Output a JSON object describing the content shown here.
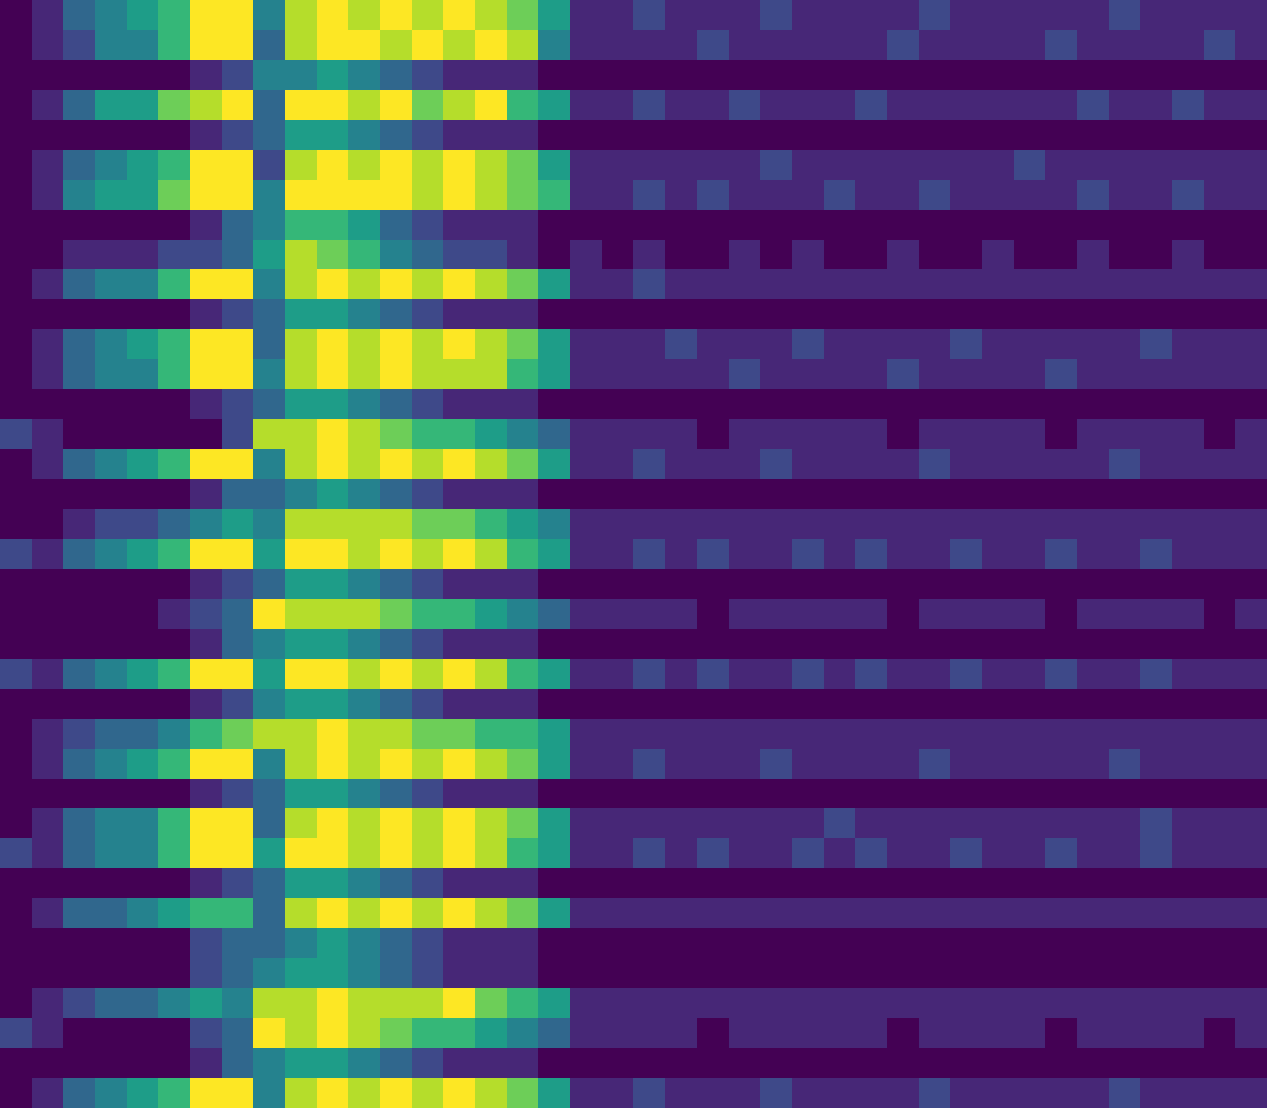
{
  "chart_data": {
    "type": "heatmap",
    "color": "viridis",
    "tick_labels": false,
    "cells": [
      [
        0,
        1,
        3,
        4,
        5,
        6,
        9,
        9,
        4,
        8,
        9,
        8,
        9,
        8,
        9,
        8,
        7,
        5,
        1,
        1,
        2,
        1,
        1,
        1,
        2,
        1,
        1,
        1,
        1,
        2,
        1,
        1,
        1,
        1,
        1,
        2,
        1,
        1,
        1,
        1
      ],
      [
        0,
        1,
        2,
        4,
        4,
        6,
        9,
        9,
        3,
        8,
        9,
        9,
        8,
        9,
        8,
        9,
        8,
        4,
        1,
        1,
        1,
        1,
        2,
        1,
        1,
        1,
        1,
        1,
        2,
        1,
        1,
        1,
        1,
        2,
        1,
        1,
        1,
        1,
        2,
        1
      ],
      [
        0,
        0,
        0,
        0,
        0,
        0,
        1,
        2,
        4,
        4,
        5,
        4,
        3,
        2,
        1,
        1,
        1,
        0,
        0,
        0,
        0,
        0,
        0,
        0,
        0,
        0,
        0,
        0,
        0,
        0,
        0,
        0,
        0,
        0,
        0,
        0,
        0,
        0,
        0,
        0
      ],
      [
        0,
        1,
        3,
        5,
        5,
        7,
        8,
        9,
        3,
        9,
        9,
        8,
        9,
        7,
        8,
        9,
        6,
        5,
        1,
        1,
        2,
        1,
        1,
        2,
        1,
        1,
        1,
        2,
        1,
        1,
        1,
        1,
        1,
        1,
        2,
        1,
        1,
        2,
        1,
        1
      ],
      [
        0,
        0,
        0,
        0,
        0,
        0,
        1,
        2,
        3,
        5,
        5,
        4,
        3,
        2,
        1,
        1,
        1,
        0,
        0,
        0,
        0,
        0,
        0,
        0,
        0,
        0,
        0,
        0,
        0,
        0,
        0,
        0,
        0,
        0,
        0,
        0,
        0,
        0,
        0,
        0
      ],
      [
        0,
        1,
        3,
        4,
        5,
        6,
        9,
        9,
        2,
        8,
        9,
        8,
        9,
        8,
        9,
        8,
        7,
        5,
        1,
        1,
        1,
        1,
        1,
        1,
        2,
        1,
        1,
        1,
        1,
        1,
        1,
        1,
        2,
        1,
        1,
        1,
        1,
        1,
        1,
        1
      ],
      [
        0,
        1,
        4,
        5,
        5,
        7,
        9,
        9,
        4,
        9,
        9,
        9,
        9,
        8,
        9,
        8,
        7,
        6,
        1,
        1,
        2,
        1,
        2,
        1,
        1,
        1,
        2,
        1,
        1,
        2,
        1,
        1,
        1,
        1,
        2,
        1,
        1,
        2,
        1,
        1
      ],
      [
        0,
        0,
        0,
        0,
        0,
        0,
        1,
        3,
        4,
        6,
        6,
        5,
        3,
        2,
        1,
        1,
        1,
        0,
        0,
        0,
        0,
        0,
        0,
        0,
        0,
        0,
        0,
        0,
        0,
        0,
        0,
        0,
        0,
        0,
        0,
        0,
        0,
        0,
        0,
        0
      ],
      [
        0,
        0,
        1,
        1,
        1,
        2,
        2,
        3,
        5,
        8,
        7,
        6,
        4,
        3,
        2,
        2,
        1,
        0,
        1,
        0,
        1,
        0,
        0,
        1,
        0,
        1,
        0,
        0,
        1,
        0,
        0,
        1,
        0,
        0,
        1,
        0,
        0,
        1,
        0,
        0
      ],
      [
        0,
        1,
        3,
        4,
        4,
        6,
        9,
        9,
        4,
        8,
        9,
        8,
        9,
        8,
        9,
        8,
        7,
        5,
        1,
        1,
        2,
        1,
        1,
        1,
        1,
        1,
        1,
        1,
        1,
        1,
        1,
        1,
        1,
        1,
        1,
        1,
        1,
        1,
        1,
        1
      ],
      [
        0,
        0,
        0,
        0,
        0,
        0,
        1,
        2,
        3,
        5,
        5,
        4,
        3,
        2,
        1,
        1,
        1,
        0,
        0,
        0,
        0,
        0,
        0,
        0,
        0,
        0,
        0,
        0,
        0,
        0,
        0,
        0,
        0,
        0,
        0,
        0,
        0,
        0,
        0,
        0
      ],
      [
        0,
        1,
        3,
        4,
        5,
        6,
        9,
        9,
        3,
        8,
        9,
        8,
        9,
        8,
        9,
        8,
        7,
        5,
        1,
        1,
        1,
        2,
        1,
        1,
        1,
        2,
        1,
        1,
        1,
        1,
        2,
        1,
        1,
        1,
        1,
        1,
        2,
        1,
        1,
        1
      ],
      [
        0,
        1,
        3,
        4,
        4,
        6,
        9,
        9,
        4,
        8,
        9,
        8,
        9,
        8,
        8,
        8,
        6,
        5,
        1,
        1,
        1,
        1,
        1,
        2,
        1,
        1,
        1,
        1,
        2,
        1,
        1,
        1,
        1,
        2,
        1,
        1,
        1,
        1,
        1,
        1
      ],
      [
        0,
        0,
        0,
        0,
        0,
        0,
        1,
        2,
        3,
        5,
        5,
        4,
        3,
        2,
        1,
        1,
        1,
        0,
        0,
        0,
        0,
        0,
        0,
        0,
        0,
        0,
        0,
        0,
        0,
        0,
        0,
        0,
        0,
        0,
        0,
        0,
        0,
        0,
        0,
        0
      ],
      [
        2,
        1,
        0,
        0,
        0,
        0,
        0,
        2,
        8,
        8,
        9,
        8,
        7,
        6,
        6,
        5,
        4,
        3,
        1,
        1,
        1,
        1,
        0,
        1,
        1,
        1,
        1,
        1,
        0,
        1,
        1,
        1,
        1,
        0,
        1,
        1,
        1,
        1,
        0,
        1
      ],
      [
        0,
        1,
        3,
        4,
        5,
        6,
        9,
        9,
        4,
        8,
        9,
        8,
        9,
        8,
        9,
        8,
        7,
        5,
        1,
        1,
        2,
        1,
        1,
        1,
        2,
        1,
        1,
        1,
        1,
        2,
        1,
        1,
        1,
        1,
        1,
        2,
        1,
        1,
        1,
        1
      ],
      [
        0,
        0,
        0,
        0,
        0,
        0,
        1,
        3,
        3,
        4,
        5,
        4,
        3,
        2,
        1,
        1,
        1,
        0,
        0,
        0,
        0,
        0,
        0,
        0,
        0,
        0,
        0,
        0,
        0,
        0,
        0,
        0,
        0,
        0,
        0,
        0,
        0,
        0,
        0,
        0
      ],
      [
        0,
        0,
        1,
        2,
        2,
        3,
        4,
        5,
        4,
        8,
        8,
        8,
        8,
        7,
        7,
        6,
        5,
        4,
        1,
        1,
        1,
        1,
        1,
        1,
        1,
        1,
        1,
        1,
        1,
        1,
        1,
        1,
        1,
        1,
        1,
        1,
        1,
        1,
        1,
        1
      ],
      [
        2,
        1,
        3,
        4,
        5,
        6,
        9,
        9,
        5,
        9,
        9,
        8,
        9,
        8,
        9,
        8,
        6,
        5,
        1,
        1,
        2,
        1,
        2,
        1,
        1,
        2,
        1,
        2,
        1,
        1,
        2,
        1,
        1,
        2,
        1,
        1,
        2,
        1,
        1,
        1
      ],
      [
        0,
        0,
        0,
        0,
        0,
        0,
        1,
        2,
        3,
        5,
        5,
        4,
        3,
        2,
        1,
        1,
        1,
        0,
        0,
        0,
        0,
        0,
        0,
        0,
        0,
        0,
        0,
        0,
        0,
        0,
        0,
        0,
        0,
        0,
        0,
        0,
        0,
        0,
        0,
        0
      ],
      [
        0,
        0,
        0,
        0,
        0,
        1,
        2,
        3,
        9,
        8,
        8,
        8,
        7,
        6,
        6,
        5,
        4,
        3,
        1,
        1,
        1,
        1,
        0,
        1,
        1,
        1,
        1,
        1,
        0,
        1,
        1,
        1,
        1,
        0,
        1,
        1,
        1,
        1,
        0,
        1
      ],
      [
        0,
        0,
        0,
        0,
        0,
        0,
        1,
        3,
        4,
        5,
        5,
        4,
        3,
        2,
        1,
        1,
        1,
        0,
        0,
        0,
        0,
        0,
        0,
        0,
        0,
        0,
        0,
        0,
        0,
        0,
        0,
        0,
        0,
        0,
        0,
        0,
        0,
        0,
        0,
        0
      ],
      [
        2,
        1,
        3,
        4,
        5,
        6,
        9,
        9,
        5,
        9,
        9,
        8,
        9,
        8,
        9,
        8,
        6,
        5,
        1,
        1,
        2,
        1,
        2,
        1,
        1,
        2,
        1,
        2,
        1,
        1,
        2,
        1,
        1,
        2,
        1,
        1,
        2,
        1,
        1,
        1
      ],
      [
        0,
        0,
        0,
        0,
        0,
        0,
        1,
        2,
        4,
        5,
        5,
        4,
        3,
        2,
        1,
        1,
        1,
        0,
        0,
        0,
        0,
        0,
        0,
        0,
        0,
        0,
        0,
        0,
        0,
        0,
        0,
        0,
        0,
        0,
        0,
        0,
        0,
        0,
        0,
        0
      ],
      [
        0,
        1,
        2,
        3,
        3,
        4,
        6,
        7,
        8,
        8,
        9,
        8,
        8,
        7,
        7,
        6,
        6,
        5,
        1,
        1,
        1,
        1,
        1,
        1,
        1,
        1,
        1,
        1,
        1,
        1,
        1,
        1,
        1,
        1,
        1,
        1,
        1,
        1,
        1,
        1
      ],
      [
        0,
        1,
        3,
        4,
        5,
        6,
        9,
        9,
        4,
        8,
        9,
        8,
        9,
        8,
        9,
        8,
        7,
        5,
        1,
        1,
        2,
        1,
        1,
        1,
        2,
        1,
        1,
        1,
        1,
        2,
        1,
        1,
        1,
        1,
        1,
        2,
        1,
        1,
        1,
        1
      ],
      [
        0,
        0,
        0,
        0,
        0,
        0,
        1,
        2,
        3,
        5,
        5,
        4,
        3,
        2,
        1,
        1,
        1,
        0,
        0,
        0,
        0,
        0,
        0,
        0,
        0,
        0,
        0,
        0,
        0,
        0,
        0,
        0,
        0,
        0,
        0,
        0,
        0,
        0,
        0,
        0
      ],
      [
        0,
        1,
        3,
        4,
        4,
        6,
        9,
        9,
        3,
        8,
        9,
        8,
        9,
        8,
        9,
        8,
        7,
        5,
        1,
        1,
        1,
        1,
        1,
        1,
        1,
        1,
        2,
        1,
        1,
        1,
        1,
        1,
        1,
        1,
        1,
        1,
        2,
        1,
        1,
        1
      ],
      [
        2,
        1,
        3,
        4,
        4,
        6,
        9,
        9,
        5,
        9,
        9,
        8,
        9,
        8,
        9,
        8,
        6,
        5,
        1,
        1,
        2,
        1,
        2,
        1,
        1,
        2,
        1,
        2,
        1,
        1,
        2,
        1,
        1,
        2,
        1,
        1,
        2,
        1,
        1,
        1
      ],
      [
        0,
        0,
        0,
        0,
        0,
        0,
        1,
        2,
        3,
        5,
        5,
        4,
        3,
        2,
        1,
        1,
        1,
        0,
        0,
        0,
        0,
        0,
        0,
        0,
        0,
        0,
        0,
        0,
        0,
        0,
        0,
        0,
        0,
        0,
        0,
        0,
        0,
        0,
        0,
        0
      ],
      [
        0,
        1,
        3,
        3,
        4,
        5,
        6,
        6,
        3,
        8,
        9,
        8,
        9,
        8,
        9,
        8,
        7,
        5,
        1,
        1,
        1,
        1,
        1,
        1,
        1,
        1,
        1,
        1,
        1,
        1,
        1,
        1,
        1,
        1,
        1,
        1,
        1,
        1,
        1,
        1
      ],
      [
        0,
        0,
        0,
        0,
        0,
        0,
        2,
        3,
        3,
        4,
        5,
        4,
        3,
        2,
        1,
        1,
        1,
        0,
        0,
        0,
        0,
        0,
        0,
        0,
        0,
        0,
        0,
        0,
        0,
        0,
        0,
        0,
        0,
        0,
        0,
        0,
        0,
        0,
        0,
        0
      ],
      [
        0,
        0,
        0,
        0,
        0,
        0,
        2,
        3,
        4,
        5,
        5,
        4,
        3,
        2,
        1,
        1,
        1,
        0,
        0,
        0,
        0,
        0,
        0,
        0,
        0,
        0,
        0,
        0,
        0,
        0,
        0,
        0,
        0,
        0,
        0,
        0,
        0,
        0,
        0,
        0
      ],
      [
        0,
        1,
        2,
        3,
        3,
        4,
        5,
        4,
        8,
        8,
        9,
        8,
        8,
        8,
        9,
        7,
        6,
        5,
        1,
        1,
        1,
        1,
        1,
        1,
        1,
        1,
        1,
        1,
        1,
        1,
        1,
        1,
        1,
        1,
        1,
        1,
        1,
        1,
        1,
        1
      ],
      [
        2,
        1,
        0,
        0,
        0,
        0,
        2,
        3,
        9,
        8,
        9,
        8,
        7,
        6,
        6,
        5,
        4,
        3,
        1,
        1,
        1,
        1,
        0,
        1,
        1,
        1,
        1,
        1,
        0,
        1,
        1,
        1,
        1,
        0,
        1,
        1,
        1,
        1,
        0,
        1
      ],
      [
        0,
        0,
        0,
        0,
        0,
        0,
        1,
        3,
        4,
        5,
        5,
        4,
        3,
        2,
        1,
        1,
        1,
        0,
        0,
        0,
        0,
        0,
        0,
        0,
        0,
        0,
        0,
        0,
        0,
        0,
        0,
        0,
        0,
        0,
        0,
        0,
        0,
        0,
        0,
        0
      ],
      [
        0,
        1,
        3,
        4,
        5,
        6,
        9,
        9,
        4,
        8,
        9,
        8,
        9,
        8,
        9,
        8,
        7,
        5,
        1,
        1,
        2,
        1,
        1,
        1,
        2,
        1,
        1,
        1,
        1,
        2,
        1,
        1,
        1,
        1,
        1,
        2,
        1,
        1,
        1,
        1
      ]
    ]
  }
}
